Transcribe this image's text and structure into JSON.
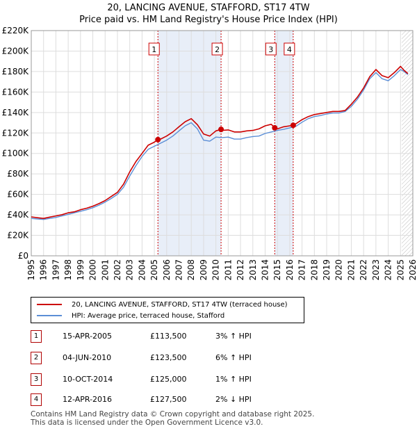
{
  "title_line1": "20, LANCING AVENUE, STAFFORD, ST17 4TW",
  "title_line2": "Price paid vs. HM Land Registry's House Price Index (HPI)",
  "colors": {
    "price_paid": "#cc0000",
    "hpi": "#5b8ed6",
    "sale_line": "#cc0000",
    "band": "#e8eef8",
    "grid": "#dddddd"
  },
  "chart_data": {
    "type": "line",
    "title": "Price paid vs. HM Land Registry's House Price Index (HPI)",
    "xlabel": "",
    "ylabel": "",
    "xlim": [
      1995,
      2026
    ],
    "ylim": [
      0,
      220000
    ],
    "x_ticks": [
      "1995",
      "1996",
      "1997",
      "1998",
      "1999",
      "2000",
      "2001",
      "2002",
      "2003",
      "2004",
      "2005",
      "2006",
      "2007",
      "2008",
      "2009",
      "2010",
      "2011",
      "2012",
      "2013",
      "2014",
      "2015",
      "2016",
      "2017",
      "2018",
      "2019",
      "2020",
      "2021",
      "2022",
      "2023",
      "2024",
      "2025",
      "2026"
    ],
    "y_ticks": [
      {
        "value": 0,
        "label": "£0"
      },
      {
        "value": 20000,
        "label": "£20K"
      },
      {
        "value": 40000,
        "label": "£40K"
      },
      {
        "value": 60000,
        "label": "£60K"
      },
      {
        "value": 80000,
        "label": "£80K"
      },
      {
        "value": 100000,
        "label": "£100K"
      },
      {
        "value": 120000,
        "label": "£120K"
      },
      {
        "value": 140000,
        "label": "£140K"
      },
      {
        "value": 160000,
        "label": "£160K"
      },
      {
        "value": 180000,
        "label": "£180K"
      },
      {
        "value": 200000,
        "label": "£200K"
      },
      {
        "value": 220000,
        "label": "£220K"
      }
    ],
    "grid": true,
    "shaded_ranges": [
      [
        2005.29,
        2010.42
      ],
      [
        2014.78,
        2016.28
      ]
    ],
    "future_hatch_from": 2025.1,
    "series": [
      {
        "name": "20, LANCING AVENUE, STAFFORD, ST17 4TW (terraced house)",
        "x": [
          1995.0,
          1995.5,
          1996.0,
          1996.5,
          1997.0,
          1997.5,
          1998.0,
          1998.5,
          1999.0,
          1999.5,
          2000.0,
          2000.5,
          2001.0,
          2001.5,
          2002.0,
          2002.5,
          2003.0,
          2003.5,
          2004.0,
          2004.5,
          2005.0,
          2005.29,
          2005.5,
          2006.0,
          2006.5,
          2007.0,
          2007.5,
          2008.0,
          2008.5,
          2009.0,
          2009.5,
          2010.0,
          2010.42,
          2010.5,
          2011.0,
          2011.5,
          2012.0,
          2012.5,
          2013.0,
          2013.5,
          2014.0,
          2014.5,
          2014.78,
          2015.0,
          2015.5,
          2016.0,
          2016.28,
          2016.5,
          2017.0,
          2017.5,
          2018.0,
          2018.5,
          2019.0,
          2019.5,
          2020.0,
          2020.5,
          2021.0,
          2021.5,
          2022.0,
          2022.5,
          2023.0,
          2023.5,
          2024.0,
          2024.5,
          2025.0,
          2025.3,
          2025.6
        ],
        "y": [
          38000,
          37200,
          36500,
          37800,
          39000,
          40200,
          42000,
          43000,
          45000,
          46500,
          48500,
          51000,
          54000,
          58000,
          62000,
          70000,
          82000,
          92000,
          100000,
          108000,
          111000,
          113500,
          114000,
          117000,
          121000,
          126000,
          131000,
          134000,
          128000,
          119000,
          117000,
          122000,
          123500,
          122500,
          123000,
          121000,
          121000,
          122000,
          122500,
          124000,
          127000,
          128500,
          125000,
          124000,
          126000,
          127000,
          127500,
          129000,
          133000,
          136000,
          138000,
          139000,
          140000,
          141000,
          141000,
          142000,
          148000,
          155000,
          164000,
          175000,
          182000,
          176000,
          174000,
          179000,
          185000,
          181000,
          178000
        ]
      },
      {
        "name": "HPI: Average price, terraced house, Stafford",
        "x": [
          1995.0,
          1995.5,
          1996.0,
          1996.5,
          1997.0,
          1997.5,
          1998.0,
          1998.5,
          1999.0,
          1999.5,
          2000.0,
          2000.5,
          2001.0,
          2001.5,
          2002.0,
          2002.5,
          2003.0,
          2003.5,
          2004.0,
          2004.5,
          2005.0,
          2005.5,
          2006.0,
          2006.5,
          2007.0,
          2007.5,
          2008.0,
          2008.5,
          2009.0,
          2009.5,
          2010.0,
          2010.5,
          2011.0,
          2011.5,
          2012.0,
          2012.5,
          2013.0,
          2013.5,
          2014.0,
          2014.5,
          2015.0,
          2015.5,
          2016.0,
          2016.5,
          2017.0,
          2017.5,
          2018.0,
          2018.5,
          2019.0,
          2019.5,
          2020.0,
          2020.5,
          2021.0,
          2021.5,
          2022.0,
          2022.5,
          2023.0,
          2023.5,
          2024.0,
          2024.5,
          2025.0,
          2025.3,
          2025.6
        ],
        "y": [
          36500,
          36000,
          35500,
          36500,
          37500,
          39000,
          40500,
          42000,
          43500,
          45000,
          47000,
          49500,
          52500,
          56000,
          60000,
          67000,
          78000,
          88000,
          97000,
          104000,
          107000,
          110000,
          113000,
          117000,
          122000,
          127000,
          130000,
          124000,
          113000,
          112000,
          116000,
          115500,
          116000,
          114000,
          114000,
          115500,
          116500,
          117000,
          119500,
          121000,
          122500,
          123500,
          125000,
          126500,
          130500,
          134000,
          136000,
          137000,
          138500,
          139500,
          139500,
          141000,
          146000,
          153000,
          162000,
          173000,
          179000,
          173000,
          171000,
          176000,
          182000,
          180000,
          177000
        ]
      }
    ],
    "sales": [
      {
        "id": "1",
        "x": 2005.29,
        "y": 113500
      },
      {
        "id": "2",
        "x": 2010.42,
        "y": 123500
      },
      {
        "id": "3",
        "x": 2014.78,
        "y": 125000
      },
      {
        "id": "4",
        "x": 2016.28,
        "y": 127500
      }
    ]
  },
  "legend": {
    "price_label": "20, LANCING AVENUE, STAFFORD, ST17 4TW (terraced house)",
    "hpi_label": "HPI: Average price, terraced house, Stafford"
  },
  "sales_table": [
    {
      "marker": "1",
      "date": "15-APR-2005",
      "price": "£113,500",
      "hpi": "3% ↑ HPI"
    },
    {
      "marker": "2",
      "date": "04-JUN-2010",
      "price": "£123,500",
      "hpi": "6% ↑ HPI"
    },
    {
      "marker": "3",
      "date": "10-OCT-2014",
      "price": "£125,000",
      "hpi": "1% ↑ HPI"
    },
    {
      "marker": "4",
      "date": "12-APR-2016",
      "price": "£127,500",
      "hpi": "2% ↓ HPI"
    }
  ],
  "footer": {
    "line1": "Contains HM Land Registry data © Crown copyright and database right 2025.",
    "line2": "This data is licensed under the Open Government Licence v3.0."
  }
}
